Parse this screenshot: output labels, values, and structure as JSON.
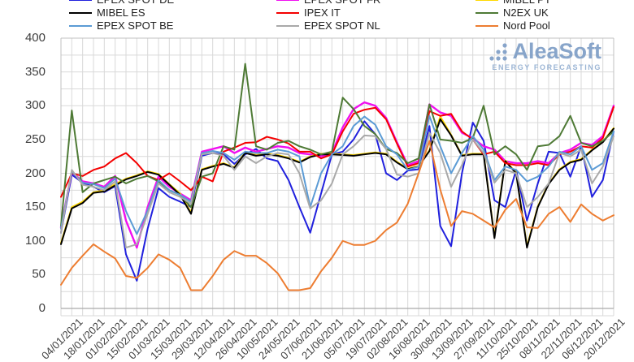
{
  "logo": {
    "text": "AleaSoft",
    "subtext": "ENERGY FORECASTING"
  },
  "axes": {
    "y_unit": "",
    "x_unit": ""
  },
  "chart_data": {
    "type": "line",
    "title": "",
    "xlabel": "",
    "ylabel": "",
    "ylim": [
      0,
      400
    ],
    "y_ticks": [
      400,
      350,
      300,
      250,
      200,
      150,
      100,
      50,
      0
    ],
    "y_minor_grid_step": 25,
    "grid": true,
    "legend_position": "top",
    "x_points": 52,
    "x_tick_every": 2,
    "x_tick_labels": [
      "04/01/2021",
      "18/01/2021",
      "01/02/2021",
      "15/02/2021",
      "01/03/2021",
      "15/03/2021",
      "29/03/2021",
      "12/04/2021",
      "26/04/2021",
      "10/05/2021",
      "24/05/2021",
      "07/06/2021",
      "21/06/2021",
      "05/07/2021",
      "19/07/2021",
      "02/08/2021",
      "16/08/2021",
      "30/08/2021",
      "13/09/2021",
      "27/09/2021",
      "11/10/2021",
      "25/10/2021",
      "08/11/2021",
      "22/11/2021",
      "06/12/2021",
      "20/12/2021"
    ],
    "series": [
      {
        "name": "EPEX SPOT DE",
        "color": "#2020dd",
        "values": [
          112,
          198,
          186,
          180,
          172,
          181,
          80,
          41,
          118,
          178,
          165,
          158,
          150,
          226,
          230,
          228,
          214,
          228,
          236,
          222,
          218,
          190,
          150,
          112,
          170,
          228,
          232,
          250,
          277,
          258,
          200,
          190,
          204,
          206,
          270,
          122,
          92,
          200,
          275,
          248,
          160,
          150,
          205,
          130,
          185,
          232,
          230,
          195,
          240,
          165,
          190,
          262
        ]
      },
      {
        "name": "EPEX SPOT FR",
        "color": "#f00ff0",
        "values": [
          120,
          202,
          188,
          185,
          180,
          196,
          130,
          90,
          150,
          195,
          180,
          170,
          160,
          232,
          236,
          240,
          230,
          238,
          232,
          236,
          240,
          238,
          230,
          228,
          225,
          230,
          268,
          295,
          305,
          300,
          282,
          246,
          212,
          218,
          302,
          290,
          285,
          260,
          252,
          240,
          235,
          218,
          215,
          215,
          218,
          215,
          230,
          235,
          245,
          242,
          255,
          300
        ]
      },
      {
        "name": "MIBEL PT",
        "color": "#ffd800",
        "values": [
          97,
          150,
          158,
          172,
          175,
          184,
          192,
          197,
          203,
          199,
          184,
          170,
          142,
          206,
          211,
          215,
          209,
          231,
          227,
          229,
          227,
          223,
          217,
          225,
          229,
          229,
          228,
          227,
          229,
          231,
          229,
          217,
          207,
          211,
          234,
          284,
          257,
          227,
          229,
          229,
          106,
          219,
          201,
          92,
          151,
          185,
          206,
          217,
          221,
          235,
          247,
          267
        ]
      },
      {
        "name": "MIBEL ES",
        "color": "#000000",
        "values": [
          95,
          148,
          156,
          171,
          173,
          182,
          191,
          196,
          202,
          198,
          183,
          168,
          140,
          205,
          210,
          214,
          208,
          230,
          226,
          228,
          226,
          222,
          216,
          224,
          228,
          228,
          227,
          226,
          228,
          230,
          228,
          216,
          206,
          210,
          233,
          280,
          256,
          226,
          228,
          228,
          104,
          218,
          200,
          90,
          150,
          184,
          205,
          216,
          220,
          234,
          246,
          266
        ]
      },
      {
        "name": "IPEX IT",
        "color": "#f40000",
        "values": [
          165,
          200,
          196,
          205,
          210,
          222,
          230,
          215,
          196,
          190,
          200,
          188,
          175,
          195,
          188,
          232,
          238,
          245,
          246,
          254,
          250,
          244,
          232,
          232,
          222,
          228,
          262,
          288,
          294,
          297,
          280,
          244,
          210,
          215,
          292,
          285,
          288,
          262,
          250,
          228,
          232,
          215,
          212,
          212,
          215,
          212,
          228,
          232,
          240,
          238,
          252,
          298
        ]
      },
      {
        "name": "N2EX UK",
        "color": "#4e7a35",
        "values": [
          122,
          293,
          172,
          185,
          190,
          195,
          185,
          192,
          196,
          188,
          175,
          168,
          150,
          195,
          200,
          240,
          235,
          362,
          240,
          235,
          245,
          248,
          240,
          235,
          228,
          232,
          312,
          295,
          270,
          258,
          236,
          230,
          215,
          222,
          302,
          250,
          248,
          245,
          252,
          300,
          228,
          240,
          228,
          205,
          240,
          242,
          255,
          285,
          245,
          240,
          248,
          262
        ]
      },
      {
        "name": "EPEX SPOT BE",
        "color": "#5b9bd5",
        "values": [
          118,
          203,
          186,
          184,
          178,
          192,
          144,
          110,
          145,
          190,
          175,
          168,
          158,
          230,
          233,
          230,
          220,
          232,
          230,
          230,
          235,
          232,
          225,
          150,
          200,
          228,
          240,
          270,
          284,
          272,
          240,
          228,
          205,
          210,
          285,
          240,
          200,
          230,
          255,
          235,
          190,
          210,
          205,
          188,
          195,
          210,
          232,
          228,
          240,
          205,
          215,
          262
        ]
      },
      {
        "name": "EPEX SPOT NL",
        "color": "#a9a9a9",
        "values": [
          112,
          205,
          183,
          180,
          175,
          188,
          90,
          95,
          140,
          185,
          172,
          165,
          155,
          228,
          230,
          226,
          205,
          225,
          215,
          225,
          230,
          228,
          200,
          148,
          160,
          185,
          228,
          240,
          256,
          255,
          236,
          198,
          195,
          200,
          260,
          230,
          180,
          212,
          250,
          230,
          186,
          205,
          200,
          150,
          165,
          185,
          230,
          225,
          235,
          185,
          210,
          255
        ]
      },
      {
        "name": "Nord Pool",
        "color": "#ed7d31",
        "values": [
          35,
          60,
          78,
          95,
          84,
          74,
          48,
          45,
          60,
          80,
          72,
          60,
          27,
          27,
          48,
          72,
          85,
          78,
          78,
          67,
          52,
          27,
          27,
          30,
          55,
          75,
          100,
          94,
          94,
          100,
          116,
          127,
          155,
          200,
          248,
          176,
          122,
          144,
          140,
          130,
          120,
          146,
          162,
          120,
          119,
          140,
          150,
          128,
          154,
          140,
          130,
          138
        ]
      }
    ],
    "colors": {
      "grid": "#d9d9d9",
      "frame": "#c0c0c0",
      "axis_bottom": "#ababab",
      "tick_text": "#3f3f3f",
      "legend_text": "#212121",
      "logo_blue": "#7e9ec6",
      "logo_sub_blue": "#92aed1"
    }
  }
}
